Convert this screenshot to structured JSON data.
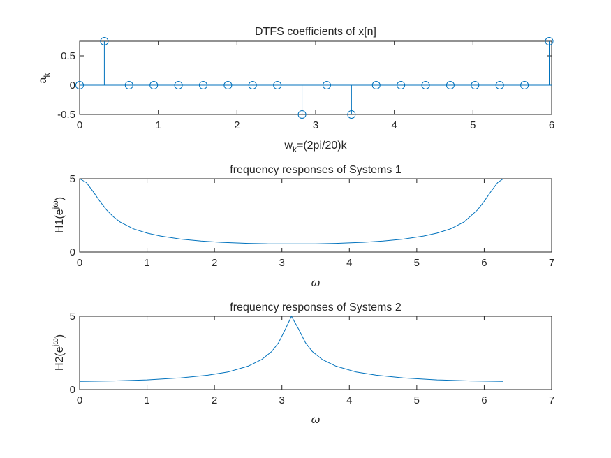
{
  "chart_data": [
    {
      "type": "stem",
      "title": "DTFS coefficients of x[n]",
      "xlabel": {
        "main": "w",
        "sub": "k",
        "rest": "=(2pi/20)k"
      },
      "ylabel": {
        "main": "a",
        "sub": "k"
      },
      "xlim": [
        0,
        6
      ],
      "ylim": [
        -0.5,
        0.75
      ],
      "xticks": [
        "0",
        "1",
        "2",
        "3",
        "4",
        "5",
        "6"
      ],
      "yticks": [
        "-0.5",
        "0",
        "0.5"
      ],
      "x": [
        0,
        0.3142,
        0.6283,
        0.9425,
        1.2566,
        1.5708,
        1.885,
        2.1991,
        2.5133,
        2.8274,
        3.1416,
        3.4558,
        3.7699,
        4.0841,
        4.3982,
        4.7124,
        5.0265,
        5.3407,
        5.6549,
        5.969
      ],
      "y": [
        0,
        0.75,
        0,
        0,
        0,
        0,
        0,
        0,
        0,
        -0.5,
        0,
        -0.5,
        0,
        0,
        0,
        0,
        0,
        0,
        0,
        0.75
      ]
    },
    {
      "type": "line",
      "title": "frequency responses of Systems 1",
      "xlabel": "ω",
      "ylabel": {
        "main": "H1(e",
        "sup": "jω",
        "close": ")"
      },
      "xlim": [
        0,
        7
      ],
      "ylim": [
        0,
        5
      ],
      "xticks": [
        "0",
        "1",
        "2",
        "3",
        "4",
        "5",
        "6",
        "7"
      ],
      "yticks": [
        "0",
        "5"
      ],
      "x": [
        0,
        0.1,
        0.2,
        0.3,
        0.4,
        0.5,
        0.6,
        0.8,
        1.0,
        1.2,
        1.5,
        1.8,
        2.1,
        2.5,
        2.8,
        3.1416,
        3.5,
        3.8,
        4.2,
        4.5,
        4.8,
        5.1,
        5.3,
        5.5,
        5.7,
        5.9,
        6.0,
        6.1,
        6.2,
        6.2832
      ],
      "y": [
        5.0,
        4.74,
        4.13,
        3.46,
        2.87,
        2.41,
        2.05,
        1.58,
        1.29,
        1.09,
        0.88,
        0.75,
        0.66,
        0.59,
        0.56,
        0.556,
        0.56,
        0.59,
        0.66,
        0.75,
        0.88,
        1.09,
        1.29,
        1.58,
        2.05,
        2.87,
        3.46,
        4.13,
        4.74,
        5.0
      ]
    },
    {
      "type": "line",
      "title": "frequency responses of Systems 2",
      "xlabel": "ω",
      "ylabel": {
        "main": "H2(e",
        "sup": "jω",
        "close": ")"
      },
      "xlim": [
        0,
        7
      ],
      "ylim": [
        0,
        5
      ],
      "xticks": [
        "0",
        "1",
        "2",
        "3",
        "4",
        "5",
        "6",
        "7"
      ],
      "yticks": [
        "0",
        "5"
      ],
      "x": [
        0,
        0.5,
        1.0,
        1.5,
        1.9,
        2.2,
        2.5,
        2.7,
        2.85,
        2.95,
        3.05,
        3.1416,
        3.25,
        3.35,
        3.45,
        3.6,
        3.8,
        4.1,
        4.4,
        4.8,
        5.3,
        5.8,
        6.2832
      ],
      "y": [
        0.556,
        0.59,
        0.66,
        0.8,
        0.98,
        1.2,
        1.6,
        2.05,
        2.6,
        3.2,
        4.1,
        5.0,
        4.1,
        3.2,
        2.6,
        2.05,
        1.6,
        1.2,
        0.98,
        0.8,
        0.66,
        0.59,
        0.556
      ]
    }
  ]
}
